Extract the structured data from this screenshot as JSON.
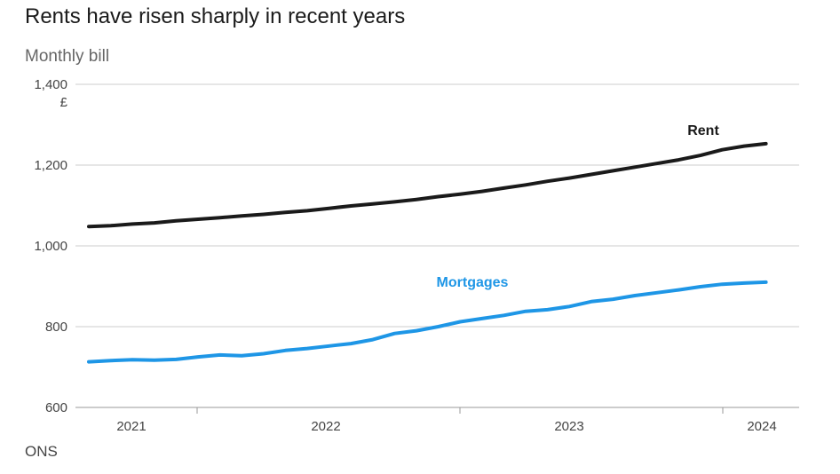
{
  "chart_data": {
    "type": "line",
    "title": "Rents have risen sharply in recent years",
    "subtitle": "Monthly bill",
    "source": "ONS",
    "y_unit": "£",
    "ylim": [
      600,
      1400
    ],
    "y_ticks": [
      {
        "value": 600,
        "label": "600"
      },
      {
        "value": 800,
        "label": "800"
      },
      {
        "value": 1000,
        "label": "1,000"
      },
      {
        "value": 1200,
        "label": "1,200"
      },
      {
        "value": 1400,
        "label": "1,400"
      }
    ],
    "x_ticks": [
      "2021",
      "2022",
      "2023",
      "2024"
    ],
    "grid": true,
    "series": [
      {
        "name": "Rent",
        "color": "#1a1a1a",
        "values": [
          1048,
          1050,
          1054,
          1057,
          1062,
          1066,
          1070,
          1074,
          1078,
          1083,
          1087,
          1093,
          1099,
          1104,
          1109,
          1115,
          1122,
          1128,
          1135,
          1143,
          1151,
          1160,
          1168,
          1177,
          1186,
          1195,
          1204,
          1213,
          1224,
          1238,
          1247,
          1253
        ]
      },
      {
        "name": "Mortgages",
        "color": "#1e96e6",
        "values": [
          713,
          716,
          718,
          717,
          719,
          725,
          730,
          728,
          733,
          741,
          746,
          752,
          758,
          768,
          783,
          790,
          800,
          812,
          820,
          828,
          838,
          842,
          850,
          862,
          868,
          877,
          884,
          891,
          899,
          905,
          908,
          910
        ]
      }
    ]
  }
}
